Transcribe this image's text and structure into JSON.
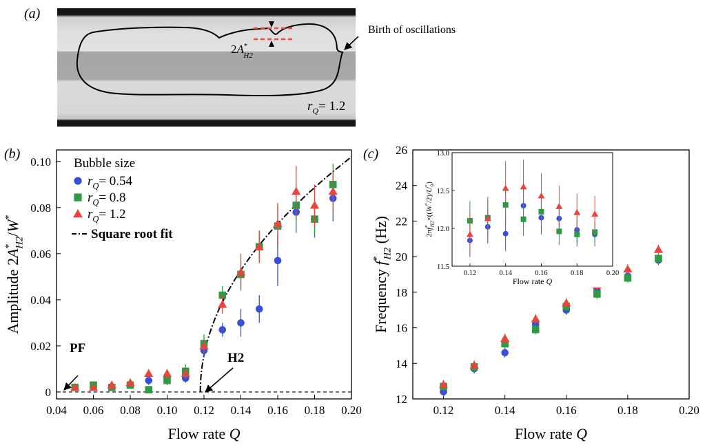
{
  "panel_labels": {
    "a": "(a)",
    "b": "(b)",
    "c": "(c)"
  },
  "photo": {
    "annotation_birth": "Birth of oscillations",
    "annotation_amp": "2A*H2",
    "rq_label": "rQ= 1.2"
  },
  "colors": {
    "blue": "#3a4fd8",
    "green": "#2e9a45",
    "red": "#e8453c"
  },
  "chart_data": [
    {
      "id": "b",
      "type": "scatter",
      "xlabel": "Flow rate Q",
      "ylabel": "Amplitude 2A*H2/W*",
      "xlim": [
        0.04,
        0.2
      ],
      "ylim": [
        -0.003,
        0.105
      ],
      "xticks": [
        "0.04",
        "0.06",
        "0.08",
        "0.10",
        "0.12",
        "0.14",
        "0.16",
        "0.18",
        "0.20"
      ],
      "yticks": [
        "0",
        "0.02",
        "0.04",
        "0.06",
        "0.08",
        "0.10"
      ],
      "legend_title": "Bubble size",
      "legend_position": "top-left",
      "annotations": [
        "PF",
        "H2"
      ],
      "series": [
        {
          "name": "rQ= 0.54",
          "marker": "circle",
          "color": "#3a4fd8",
          "x": [
            0.05,
            0.06,
            0.07,
            0.08,
            0.09,
            0.1,
            0.11,
            0.12,
            0.13,
            0.14,
            0.15,
            0.16,
            0.17,
            0.18,
            0.19
          ],
          "y": [
            0.002,
            0.002,
            0.002,
            0.003,
            0.005,
            0.006,
            0.006,
            0.018,
            0.027,
            0.03,
            0.036,
            0.057,
            0.078,
            0.075,
            0.084
          ],
          "err": [
            0.001,
            0.001,
            0.001,
            0.001,
            0.002,
            0.002,
            0.002,
            0.003,
            0.003,
            0.006,
            0.006,
            0.011,
            0.009,
            0.008,
            0.01
          ]
        },
        {
          "name": "rQ= 0.8",
          "marker": "square",
          "color": "#2e9a45",
          "x": [
            0.05,
            0.06,
            0.07,
            0.08,
            0.09,
            0.1,
            0.11,
            0.12,
            0.13,
            0.14,
            0.15,
            0.16,
            0.17,
            0.18,
            0.19
          ],
          "y": [
            0.002,
            0.003,
            0.002,
            0.003,
            0.001,
            0.005,
            0.009,
            0.021,
            0.042,
            0.051,
            0.063,
            0.072,
            0.081,
            0.075,
            0.09
          ],
          "err": [
            0.001,
            0.001,
            0.001,
            0.001,
            0.001,
            0.002,
            0.003,
            0.004,
            0.004,
            0.006,
            0.007,
            0.009,
            0.009,
            0.007,
            0.009
          ]
        },
        {
          "name": "rQ= 1.2",
          "marker": "triangle",
          "color": "#e8453c",
          "x": [
            0.05,
            0.06,
            0.07,
            0.08,
            0.09,
            0.1,
            0.11,
            0.12,
            0.13,
            0.14,
            0.15,
            0.16,
            0.17,
            0.18,
            0.19
          ],
          "y": [
            0.002,
            0.002,
            0.003,
            0.004,
            0.008,
            0.008,
            0.008,
            0.02,
            0.038,
            0.052,
            0.063,
            0.073,
            0.087,
            0.081,
            0.087
          ],
          "err": [
            0.001,
            0.001,
            0.001,
            0.001,
            0.002,
            0.002,
            0.002,
            0.003,
            0.004,
            0.008,
            0.007,
            0.009,
            0.011,
            0.009,
            0.009
          ]
        }
      ],
      "fit": {
        "name": "Square root fit",
        "h2": 0.118,
        "x_end": 0.2,
        "y_end": 0.102
      },
      "baseline": 0
    },
    {
      "id": "c",
      "type": "scatter",
      "xlabel": "Flow rate Q",
      "ylabel": "Frequency f*H2 (Hz)",
      "xlim": [
        0.11,
        0.2
      ],
      "ylim": [
        12,
        26
      ],
      "xticks": [
        "0.12",
        "0.14",
        "0.16",
        "0.18",
        "0.20"
      ],
      "yticks": [
        "12",
        "14",
        "16",
        "18",
        "20",
        "22",
        "24",
        "26"
      ],
      "series": [
        {
          "name": "rQ= 0.54",
          "marker": "circle",
          "color": "#3a4fd8",
          "x": [
            0.12,
            0.13,
            0.14,
            0.15,
            0.16,
            0.17,
            0.18,
            0.19
          ],
          "y": [
            12.4,
            13.7,
            14.6,
            16.2,
            17.0,
            18.1,
            18.9,
            19.8
          ]
        },
        {
          "name": "rQ= 0.8",
          "marker": "square",
          "color": "#2e9a45",
          "x": [
            0.12,
            0.13,
            0.14,
            0.15,
            0.16,
            0.17,
            0.18,
            0.19
          ],
          "y": [
            12.7,
            13.8,
            15.1,
            15.9,
            17.2,
            17.9,
            18.8,
            19.9
          ]
        },
        {
          "name": "rQ= 1.2",
          "marker": "triangle",
          "color": "#e8453c",
          "x": [
            0.12,
            0.13,
            0.14,
            0.15,
            0.16,
            0.17,
            0.18,
            0.19
          ],
          "y": [
            12.8,
            13.9,
            15.4,
            16.5,
            17.4,
            18.4,
            19.3,
            20.4
          ]
        }
      ]
    },
    {
      "id": "c-inset",
      "type": "scatter",
      "xlabel": "Flow rate Q",
      "ylabel": "2πf*H2×((W*/2)/U*0)",
      "xlim": [
        0.11,
        0.2
      ],
      "ylim": [
        11.5,
        13.0
      ],
      "xticks": [
        "0.12",
        "0.14",
        "0.16",
        "0.18",
        "0.20"
      ],
      "yticks": [
        "11.5",
        "12.0",
        "12.5",
        "13.0"
      ],
      "series": [
        {
          "name": "rQ= 0.54",
          "marker": "circle",
          "color": "#3a4fd8",
          "x": [
            0.12,
            0.13,
            0.14,
            0.15,
            0.16,
            0.17,
            0.18,
            0.19
          ],
          "y": [
            11.84,
            12.02,
            11.93,
            12.3,
            12.14,
            12.13,
            11.98,
            11.92
          ],
          "err": [
            0.22,
            0.22,
            0.23,
            0.24,
            0.22,
            0.2,
            0.18,
            0.16
          ]
        },
        {
          "name": "rQ= 0.8",
          "marker": "square",
          "color": "#2e9a45",
          "x": [
            0.12,
            0.13,
            0.14,
            0.15,
            0.16,
            0.17,
            0.18,
            0.19
          ],
          "y": [
            12.1,
            12.14,
            12.31,
            12.12,
            12.22,
            11.96,
            11.92,
            11.95
          ],
          "err": [
            0.26,
            0.24,
            0.22,
            0.22,
            0.2,
            0.18,
            0.16,
            0.15
          ]
        },
        {
          "name": "rQ= 1.2",
          "marker": "triangle",
          "color": "#e8453c",
          "x": [
            0.12,
            0.13,
            0.14,
            0.15,
            0.16,
            0.17,
            0.18,
            0.19
          ],
          "y": [
            11.92,
            12.13,
            12.53,
            12.55,
            12.43,
            12.29,
            12.21,
            12.19
          ],
          "err": [
            0.28,
            0.29,
            0.36,
            0.36,
            0.3,
            0.27,
            0.25,
            0.24
          ]
        }
      ]
    }
  ]
}
